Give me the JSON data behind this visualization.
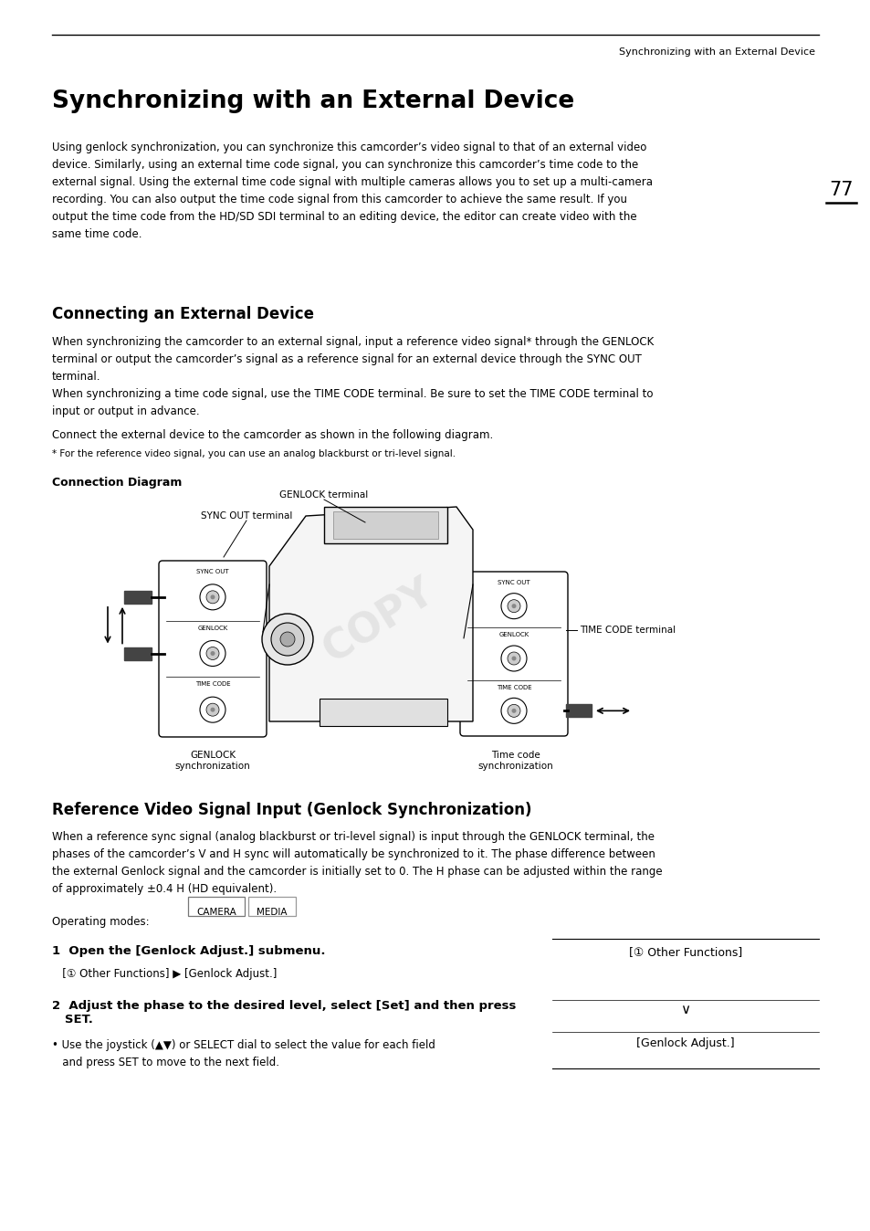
{
  "header_text": "Synchronizing with an External Device",
  "page_number": "77",
  "title": "Synchronizing with an External Device",
  "body_intro": "Using genlock synchronization, you can synchronize this camcorder’s video signal to that of an external video\ndevice. Similarly, using an external time code signal, you can synchronize this camcorder’s time code to the\nexternal signal. Using the external time code signal with multiple cameras allows you to set up a multi-camera\nrecording. You can also output the time code signal from this camcorder to achieve the same result. If you\noutput the time code from the HD/SD SDI terminal to an editing device, the editor can create video with the\nsame time code.",
  "section1_title": "Connecting an External Device",
  "section1_text1": "When synchronizing the camcorder to an external signal, input a reference video signal* through the GENLOCK\nterminal or output the camcorder’s signal as a reference signal for an external device through the SYNC OUT\nterminal.\nWhen synchronizing a time code signal, use the TIME CODE terminal. Be sure to set the TIME CODE terminal to\ninput or output in advance.",
  "section1_text2": "Connect the external device to the camcorder as shown in the following diagram.",
  "section1_footnote": "* For the reference video signal, you can use an analog blackburst or tri-level signal.",
  "diagram_label": "Connection Diagram",
  "label_genlock_terminal": "GENLOCK terminal",
  "label_sync_out": "SYNC OUT terminal",
  "label_time_code": "TIME CODE terminal",
  "label_genlock_sync": "GENLOCK\nsynchronization",
  "label_timecode_sync": "Time code\nsynchronization",
  "section2_title": "Reference Video Signal Input (Genlock Synchronization)",
  "section2_text": "When a reference sync signal (analog blackburst or tri-level signal) is input through the GENLOCK terminal, the\nphases of the camcorder’s V and H sync will automatically be synchronized to it. The phase difference between\nthe external Genlock signal and the camcorder is initially set to 0. The H phase can be adjusted within the range\nof approximately ±0.4 H (HD equivalent).",
  "operating_modes_label": "Operating modes:",
  "camera_label": "CAMERA",
  "media_label": "MEDIA",
  "step1_bold": "1  Open the [Genlock Adjust.] submenu.",
  "step1_sub": "   [① Other Functions] ▶ [Genlock Adjust.]",
  "step2_bold": "2  Adjust the phase to the desired level, select [Set] and then press\n   SET.",
  "step2_sub": "• Use the joystick (▲▼) or SELECT dial to select the value for each field\n   and press SET to move to the next field.",
  "sidebar_other_functions": "[① Other Functions]",
  "sidebar_genlock_adjust": "[Genlock Adjust.]",
  "bg_color": "#ffffff"
}
